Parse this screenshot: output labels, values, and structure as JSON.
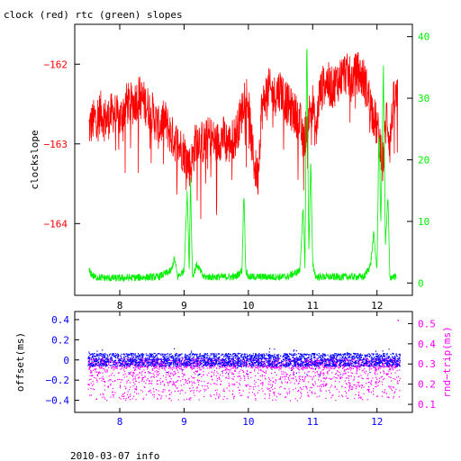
{
  "title": "clock (red) rtc (green) slopes",
  "footer": "2010-03-07 info",
  "colors": {
    "clock": "#ff0000",
    "rtc": "#00ee00",
    "offset": "#0000ff",
    "rndtrip": "#ff00ff",
    "axis": "#000000"
  },
  "chart_data": [
    {
      "type": "line",
      "x": {
        "range": [
          7.3,
          12.55
        ],
        "ticks": [
          8,
          9,
          10,
          11,
          12
        ]
      },
      "y_left": {
        "label": "clockslope",
        "range": [
          -164.9,
          -161.5
        ],
        "ticks": [
          -162,
          -163,
          -164
        ],
        "tick_color": "#ff0000"
      },
      "y_right": {
        "label": "",
        "range": [
          -2,
          42
        ],
        "ticks": [
          0,
          10,
          20,
          30,
          40
        ],
        "tick_color": "#00ee00"
      },
      "series": [
        {
          "color": "#ff0000",
          "axis": "left",
          "x": [
            7.52,
            7.6,
            7.7,
            7.8,
            7.9,
            8.0,
            8.1,
            8.2,
            8.3,
            8.4,
            8.5,
            8.6,
            8.7,
            8.8,
            8.9,
            9.0,
            9.05,
            9.1,
            9.15,
            9.2,
            9.3,
            9.4,
            9.5,
            9.6,
            9.7,
            9.8,
            9.9,
            9.95,
            10.0,
            10.05,
            10.1,
            10.15,
            10.2,
            10.3,
            10.4,
            10.5,
            10.6,
            10.7,
            10.8,
            10.85,
            10.9,
            10.95,
            11.0,
            11.05,
            11.1,
            11.2,
            11.3,
            11.4,
            11.5,
            11.6,
            11.7,
            11.8,
            11.9,
            12.0,
            12.05,
            12.1,
            12.15,
            12.2,
            12.25,
            12.32
          ],
          "y": [
            -162.8,
            -162.7,
            -162.6,
            -162.7,
            -162.6,
            -162.7,
            -162.5,
            -162.5,
            -162.4,
            -162.5,
            -162.6,
            -162.8,
            -162.7,
            -162.9,
            -163.0,
            -163.1,
            -163.2,
            -163.3,
            -163.1,
            -162.9,
            -163.0,
            -162.9,
            -163.0,
            -162.9,
            -163.0,
            -162.9,
            -162.6,
            -162.3,
            -162.5,
            -163.0,
            -163.3,
            -163.4,
            -162.6,
            -162.3,
            -162.4,
            -162.3,
            -162.5,
            -162.6,
            -162.7,
            -163.0,
            -162.8,
            -162.6,
            -162.5,
            -162.9,
            -162.4,
            -162.2,
            -162.3,
            -162.2,
            -162.1,
            -162.2,
            -162.1,
            -162.2,
            -162.5,
            -162.8,
            -163.0,
            -163.2,
            -162.6,
            -163.0,
            -162.5,
            -162.4
          ]
        },
        {
          "color": "#00ee00",
          "axis": "right",
          "x": [
            7.52,
            7.6,
            7.8,
            8.0,
            8.3,
            8.6,
            8.8,
            8.85,
            8.9,
            9.0,
            9.05,
            9.08,
            9.1,
            9.13,
            9.2,
            9.3,
            9.5,
            9.8,
            9.9,
            9.93,
            9.96,
            10.0,
            10.2,
            10.4,
            10.6,
            10.8,
            10.85,
            10.88,
            10.91,
            10.94,
            10.97,
            11.0,
            11.05,
            11.2,
            11.4,
            11.6,
            11.8,
            11.9,
            11.95,
            12.0,
            12.03,
            12.06,
            12.1,
            12.13,
            12.17,
            12.2,
            12.3
          ],
          "y": [
            2,
            1,
            0.8,
            0.8,
            0.9,
            1,
            2,
            4,
            1,
            2,
            15,
            2,
            17,
            1,
            3,
            1,
            1,
            1,
            2,
            15,
            2,
            1,
            1,
            1,
            1,
            2,
            12,
            3,
            40,
            5,
            20,
            3,
            1,
            1,
            1,
            1,
            1,
            3,
            8,
            2,
            25,
            10,
            35,
            6,
            14,
            1,
            1
          ]
        }
      ]
    },
    {
      "type": "scatter",
      "x": {
        "range": [
          7.3,
          12.55
        ],
        "ticks": [
          8,
          9,
          10,
          11,
          12
        ]
      },
      "y_left": {
        "label": "offset(ms)",
        "range": [
          -0.52,
          0.48
        ],
        "ticks": [
          0.4,
          0.2,
          0,
          -0.2,
          -0.4
        ],
        "tick_labels": [
          "0.4",
          "0.2",
          "0",
          "−0.2",
          "−0.4"
        ],
        "tick_color": "#0000ff"
      },
      "y_right": {
        "label": "rnd−trip(ms)",
        "range": [
          0.06,
          0.56
        ],
        "ticks": [
          0.5,
          0.4,
          0.3,
          0.2,
          0.1
        ],
        "tick_labels": [
          "0.5",
          "0.4",
          "0.3",
          "0.2",
          "0.1"
        ],
        "tick_color": "#ff00ff"
      },
      "series": [
        {
          "color": "#0000ff",
          "axis": "left",
          "x_range": [
            7.5,
            12.35
          ],
          "center": 0.0,
          "band": [
            -0.06,
            0.07
          ],
          "outliers": [
            -0.15,
            0.12
          ]
        },
        {
          "color": "#ff00ff",
          "axis": "right",
          "x_range": [
            7.5,
            12.35
          ],
          "band": [
            0.28,
            0.33
          ],
          "cloud": [
            0.12,
            0.28
          ],
          "outliers": [
            0.52
          ]
        }
      ]
    }
  ]
}
